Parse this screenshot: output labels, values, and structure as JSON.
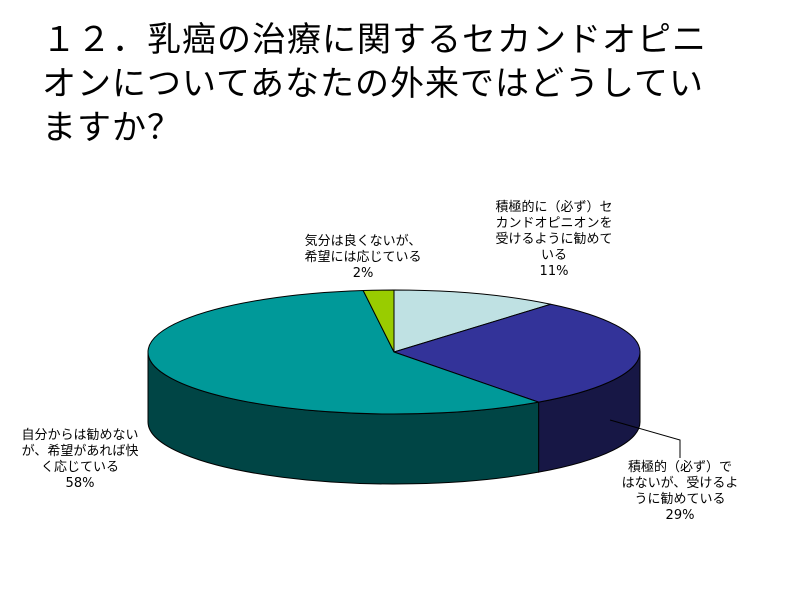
{
  "title_lines": [
    "１２．乳癌の治療に関するセカンドオピニ",
    "オンについてあなたの外来ではどうしてい",
    "ますか？"
  ],
  "chart_data": {
    "type": "pie",
    "style": "3d",
    "slices": [
      {
        "label_lines": [
          "積極的に（必ず）セ",
          "カンドオピニオンを",
          "受けるように勧めて",
          "いる"
        ],
        "value": 11,
        "value_label": "11%",
        "color": "#bfe1e3"
      },
      {
        "label_lines": [
          "積極的（必ず）で",
          "はないが、受けるよ",
          "うに勧めている"
        ],
        "value": 29,
        "value_label": "29%",
        "color": "#333399"
      },
      {
        "label_lines": [
          "自分からは勧めない",
          "が、希望があれば快",
          "く応じている"
        ],
        "value": 58,
        "value_label": "58%",
        "color": "#009999"
      },
      {
        "label_lines": [
          "気分は良くないが、",
          "希望には応じている"
        ],
        "value": 2,
        "value_label": "2%",
        "color": "#99cc00"
      }
    ],
    "legend": "none"
  }
}
